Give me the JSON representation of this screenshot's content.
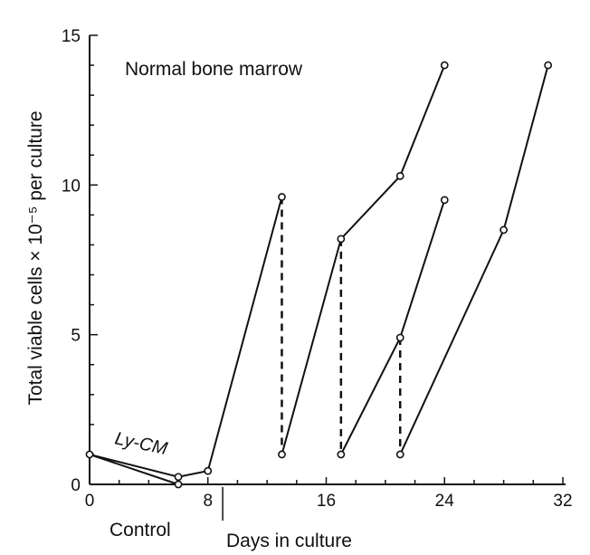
{
  "chart_data": {
    "type": "line",
    "title": "",
    "xlabel": "Days in culture",
    "ylabel": "Total viable cells × 10⁻⁵ per culture",
    "xlim": [
      0,
      32
    ],
    "ylim": [
      0,
      15
    ],
    "x_ticks": [
      "0",
      "8",
      "16",
      "24",
      "32"
    ],
    "y_ticks": [
      "0",
      "5",
      "10",
      "15"
    ],
    "annotations": {
      "panel_label": "Normal bone marrow",
      "ly_cm_label": "Ly-CM",
      "control_label": "Control"
    },
    "series": [
      {
        "style": "solid",
        "points": [
          [
            0,
            1.0
          ],
          [
            6,
            0.25
          ],
          [
            8,
            0.45
          ],
          [
            13,
            9.6
          ]
        ]
      },
      {
        "style": "solid",
        "points": [
          [
            0,
            1.0
          ],
          [
            6,
            0.0
          ]
        ]
      },
      {
        "style": "solid",
        "points": [
          [
            13,
            1.0
          ],
          [
            17,
            8.2
          ],
          [
            21,
            10.3
          ],
          [
            24,
            14.0
          ]
        ]
      },
      {
        "style": "solid",
        "points": [
          [
            17,
            1.0
          ],
          [
            21,
            4.9
          ],
          [
            24,
            9.5
          ]
        ]
      },
      {
        "style": "solid",
        "points": [
          [
            21,
            1.0
          ],
          [
            28,
            8.5
          ],
          [
            31,
            14.0
          ]
        ]
      },
      {
        "style": "dashed",
        "points": [
          [
            13,
            9.6
          ],
          [
            13,
            1.0
          ]
        ]
      },
      {
        "style": "dashed",
        "points": [
          [
            17,
            8.2
          ],
          [
            17,
            1.0
          ]
        ]
      },
      {
        "style": "dashed",
        "points": [
          [
            21,
            4.9
          ],
          [
            21,
            1.0
          ]
        ]
      }
    ]
  }
}
